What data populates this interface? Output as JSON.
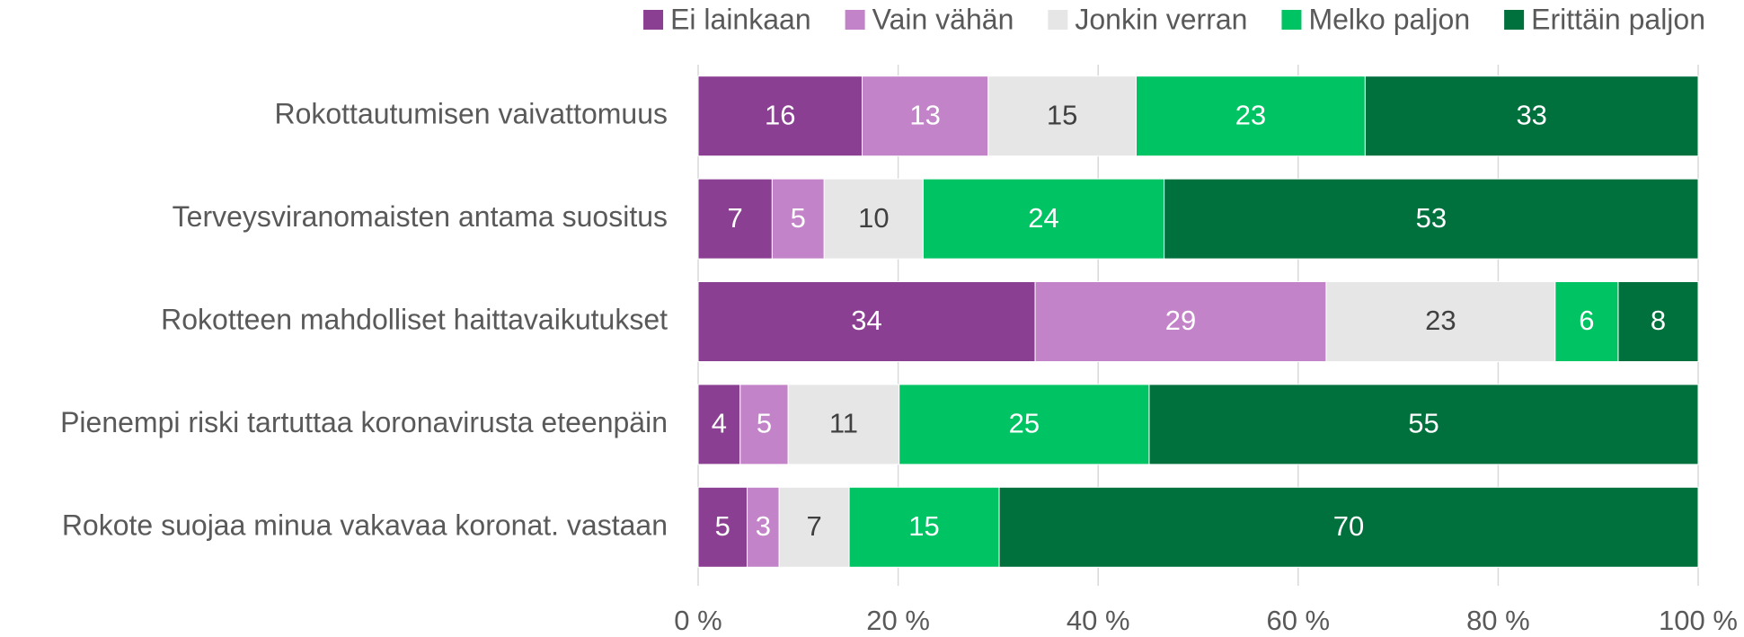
{
  "chart_data": {
    "type": "stacked_bar_horizontal",
    "categories": [
      "Rokottautumisen vaivattomuus",
      "Terveysviranomaisten antama suositus",
      "Rokotteen mahdolliset haittavaikutukset",
      "Pienempi riski tartuttaa koronavirusta eteenpäin",
      "Rokote suojaa minua vakavaa koronat. vastaan"
    ],
    "series": [
      {
        "name": "Ei lainkaan",
        "color": "#8b3f92",
        "values": [
          16.4,
          7.4,
          33.7,
          4.2,
          4.9
        ],
        "value_labels": [
          "16",
          "7",
          "34",
          "4",
          "5"
        ]
      },
      {
        "name": "Vain vähän",
        "color": "#c383c9",
        "values": [
          12.6,
          5.2,
          29.1,
          4.8,
          3.2
        ],
        "value_labels": [
          "13",
          "5",
          "29",
          "5",
          "3"
        ]
      },
      {
        "name": "Jonkin verran",
        "color": "#e6e6e6",
        "values": [
          14.8,
          9.9,
          22.9,
          11.1,
          7.0
        ],
        "value_labels": [
          "15",
          "10",
          "23",
          "11",
          "7"
        ]
      },
      {
        "name": "Melko paljon",
        "color": "#00c464",
        "values": [
          22.9,
          24.1,
          6.3,
          25.0,
          15.0
        ],
        "value_labels": [
          "23",
          "24",
          "6",
          "25",
          "15"
        ]
      },
      {
        "name": "Erittäin paljon",
        "color": "#00703c",
        "values": [
          33.3,
          53.4,
          8.0,
          54.9,
          69.9
        ],
        "value_labels": [
          "33",
          "53",
          "8",
          "55",
          "70"
        ]
      }
    ],
    "xlim": [
      0,
      100
    ],
    "xticks": [
      {
        "value": 0,
        "label": "0 %"
      },
      {
        "value": 20,
        "label": "20 %"
      },
      {
        "value": 40,
        "label": "40 %"
      },
      {
        "value": 60,
        "label": "60 %"
      },
      {
        "value": 80,
        "label": "80 %"
      },
      {
        "value": 100,
        "label": "100 %"
      }
    ],
    "grid": true,
    "legend": "top-right"
  }
}
